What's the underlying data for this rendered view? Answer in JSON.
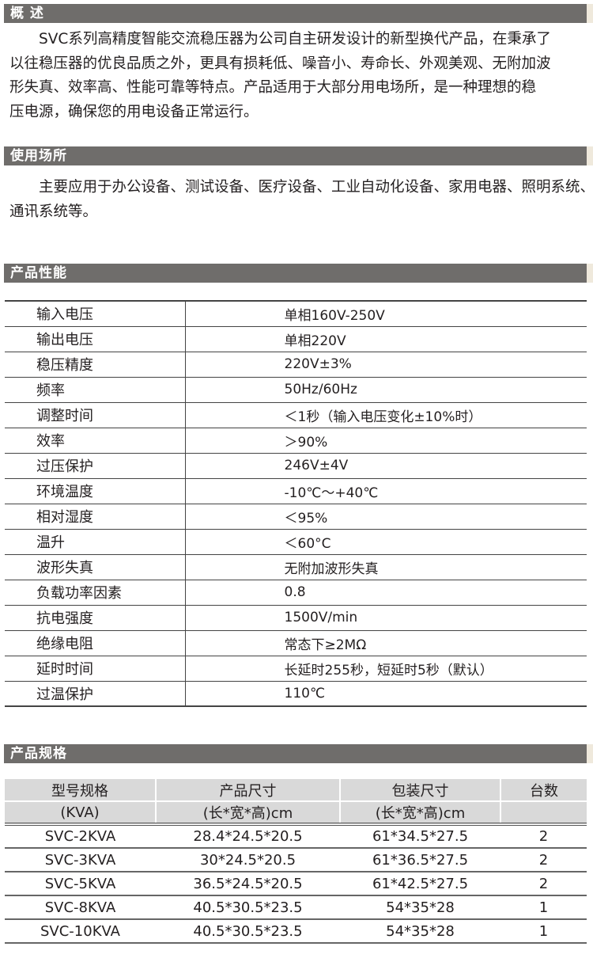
{
  "overview": {
    "title": "概  述",
    "lines": [
      "　　SVC系列高精度智能交流稳压器为公司自主研发设计的新型换代产品，在秉承了",
      "以往稳压器的优良品质之外，更具有损耗低、噪音小、寿命长、外观美观、无附加波",
      "形失真、效率高、性能可靠等特点。产品适用于大部分用电场所，是一种理想的稳",
      "压电源，确保您的用电设备正常运行。"
    ]
  },
  "usage": {
    "title": "使用场所",
    "lines": [
      "　　主要应用于办公设备、测试设备、医疗设备、工业自动化设备、家用电器、照明系统、",
      "通讯系统等。"
    ]
  },
  "performance": {
    "title": "产品性能",
    "rows": [
      {
        "k": "输入电压",
        "v": "单相160V-250V"
      },
      {
        "k": "输出电压",
        "v": "单相220V"
      },
      {
        "k": "稳压精度",
        "v": "220V±3%"
      },
      {
        "k": "频率",
        "v": "50Hz/60Hz"
      },
      {
        "k": "调整时间",
        "v": "＜1秒（输入电压变化±10%时）"
      },
      {
        "k": "效率",
        "v": "＞90%"
      },
      {
        "k": "过压保护",
        "v": "246V±4V"
      },
      {
        "k": "环境温度",
        "v": "-10℃～+40℃"
      },
      {
        "k": "相对湿度",
        "v": "＜95%"
      },
      {
        "k": "温升",
        "v": "＜60°C"
      },
      {
        "k": "波形失真",
        "v": "无附加波形失真"
      },
      {
        "k": "负载功率因素",
        "v": "0.8"
      },
      {
        "k": "抗电强度",
        "v": "1500V/min"
      },
      {
        "k": "绝缘电阻",
        "v": "常态下≥2MΩ"
      },
      {
        "k": "延时时间",
        "v": "长延时255秒，短延时5秒（默认）"
      },
      {
        "k": "过温保护",
        "v": "110℃"
      }
    ]
  },
  "specs": {
    "title": "产品规格",
    "headers": [
      [
        "型号规格",
        "产品尺寸",
        "包装尺寸",
        "台数"
      ],
      [
        "(KVA)",
        "(长*宽*高)cm",
        "(长*宽*高)cm",
        ""
      ]
    ],
    "rows": [
      [
        "SVC-2KVA",
        "28.4*24.5*20.5",
        "61*34.5*27.5",
        "2"
      ],
      [
        "SVC-3KVA",
        "30*24.5*20.5",
        "61*36.5*27.5",
        "2"
      ],
      [
        "SVC-5KVA",
        "36.5*24.5*20.5",
        "61*42.5*27.5",
        "2"
      ],
      [
        "SVC-8KVA",
        "40.5*30.5*23.5",
        "54*35*28",
        "1"
      ],
      [
        "SVC-10KVA",
        "40.5*30.5*23.5",
        "54*35*28",
        "1"
      ]
    ]
  }
}
